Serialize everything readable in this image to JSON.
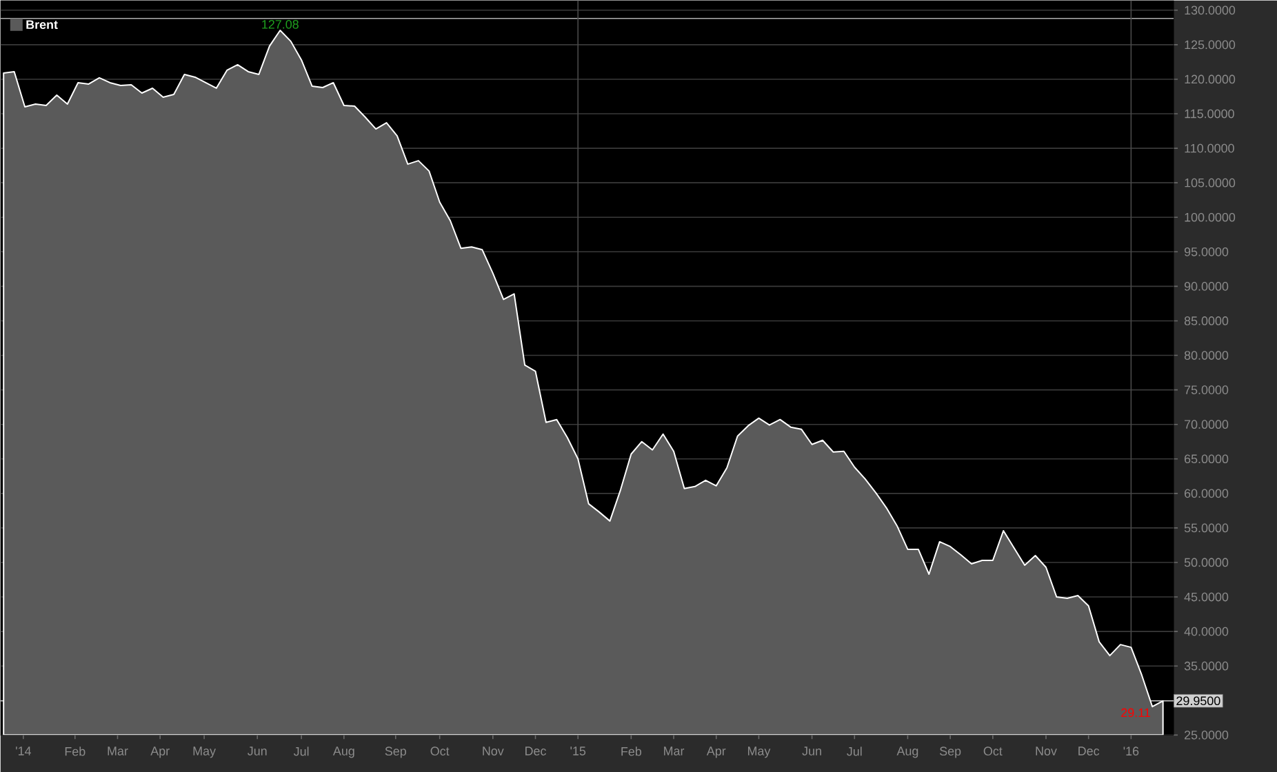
{
  "chart_data": {
    "type": "area",
    "x": [
      "2013-12-20",
      "2013-12-27",
      "2014-01-03",
      "2014-01-10",
      "2014-01-17",
      "2014-01-24",
      "2014-01-31",
      "2014-02-07",
      "2014-02-14",
      "2014-02-21",
      "2014-02-28",
      "2014-03-07",
      "2014-03-14",
      "2014-03-21",
      "2014-03-28",
      "2014-04-04",
      "2014-04-11",
      "2014-04-18",
      "2014-04-25",
      "2014-05-02",
      "2014-05-09",
      "2014-05-16",
      "2014-05-23",
      "2014-05-30",
      "2014-06-06",
      "2014-06-13",
      "2014-06-20",
      "2014-06-27",
      "2014-07-04",
      "2014-07-11",
      "2014-07-18",
      "2014-07-25",
      "2014-08-01",
      "2014-08-08",
      "2014-08-15",
      "2014-08-22",
      "2014-08-29",
      "2014-09-05",
      "2014-09-12",
      "2014-09-19",
      "2014-09-26",
      "2014-10-03",
      "2014-10-10",
      "2014-10-17",
      "2014-10-24",
      "2014-10-31",
      "2014-11-07",
      "2014-11-14",
      "2014-11-21",
      "2014-11-28",
      "2014-12-05",
      "2014-12-12",
      "2014-12-19",
      "2014-12-26",
      "2015-01-02",
      "2015-01-09",
      "2015-01-16",
      "2015-01-23",
      "2015-01-30",
      "2015-02-06",
      "2015-02-13",
      "2015-02-20",
      "2015-02-27",
      "2015-03-06",
      "2015-03-13",
      "2015-03-20",
      "2015-03-27",
      "2015-04-03",
      "2015-04-10",
      "2015-04-17",
      "2015-04-24",
      "2015-05-01",
      "2015-05-08",
      "2015-05-15",
      "2015-05-22",
      "2015-05-29",
      "2015-06-05",
      "2015-06-12",
      "2015-06-19",
      "2015-06-26",
      "2015-07-03",
      "2015-07-10",
      "2015-07-17",
      "2015-07-24",
      "2015-07-31",
      "2015-08-07",
      "2015-08-14",
      "2015-08-21",
      "2015-08-28",
      "2015-09-04",
      "2015-09-11",
      "2015-09-18",
      "2015-09-25",
      "2015-10-02",
      "2015-10-09",
      "2015-10-16",
      "2015-10-23",
      "2015-10-30",
      "2015-11-06",
      "2015-11-13",
      "2015-11-20",
      "2015-11-27",
      "2015-12-04",
      "2015-12-11",
      "2015-12-18",
      "2015-12-25",
      "2016-01-01",
      "2016-01-08",
      "2016-01-15",
      "2016-01-22"
    ],
    "series": [
      {
        "name": "Brent",
        "color": "#5a5a5a",
        "values": [
          120.9,
          121.1,
          116.0,
          116.4,
          116.2,
          117.7,
          116.4,
          119.5,
          119.3,
          120.2,
          119.5,
          119.1,
          119.2,
          118.0,
          118.7,
          117.4,
          117.8,
          120.7,
          120.3,
          119.5,
          118.7,
          121.3,
          122.1,
          121.1,
          120.7,
          124.8,
          127.08,
          125.5,
          122.8,
          119.0,
          118.8,
          119.5,
          116.2,
          116.1,
          114.5,
          112.8,
          113.7,
          111.8,
          107.7,
          108.2,
          106.7,
          102.2,
          99.5,
          95.5,
          95.7,
          95.3,
          91.9,
          88.1,
          88.9,
          78.6,
          77.7,
          70.3,
          70.7,
          68.1,
          65.0,
          58.5,
          57.3,
          56.0,
          60.5,
          65.7,
          67.5,
          66.3,
          68.6,
          66.1,
          60.7,
          61.0,
          61.9,
          61.1,
          63.7,
          68.3,
          69.8,
          70.9,
          69.9,
          70.7,
          69.6,
          69.3,
          67.1,
          67.7,
          66.0,
          66.1,
          63.8,
          62.1,
          60.1,
          57.9,
          55.3,
          51.9,
          51.9,
          48.3,
          53.0,
          52.3,
          51.1,
          49.8,
          50.3,
          50.3,
          54.6,
          52.1,
          49.6,
          51.0,
          49.3,
          45.0,
          44.8,
          45.2,
          43.7,
          38.5,
          36.5,
          38.1,
          37.7,
          33.7,
          29.11,
          29.95
        ]
      }
    ],
    "xlim": [
      "2013-12-18",
      "2016-01-29"
    ],
    "ylim": [
      25,
      131.4
    ],
    "xticks": [
      {
        "value": "2014-01-02",
        "label": "'14"
      },
      {
        "value": "2014-02-05",
        "label": "Feb"
      },
      {
        "value": "2014-03-05",
        "label": "Mar"
      },
      {
        "value": "2014-04-02",
        "label": "Apr"
      },
      {
        "value": "2014-05-01",
        "label": "May"
      },
      {
        "value": "2014-06-05",
        "label": "Jun"
      },
      {
        "value": "2014-07-04",
        "label": "Jul"
      },
      {
        "value": "2014-08-01",
        "label": "Aug"
      },
      {
        "value": "2014-09-04",
        "label": "Sep"
      },
      {
        "value": "2014-10-03",
        "label": "Oct"
      },
      {
        "value": "2014-11-07",
        "label": "Nov"
      },
      {
        "value": "2014-12-05",
        "label": "Dec"
      },
      {
        "value": "2015-01-02",
        "label": "'15"
      },
      {
        "value": "2015-02-06",
        "label": "Feb"
      },
      {
        "value": "2015-03-06",
        "label": "Mar"
      },
      {
        "value": "2015-04-03",
        "label": "Apr"
      },
      {
        "value": "2015-05-01",
        "label": "May"
      },
      {
        "value": "2015-06-05",
        "label": "Jun"
      },
      {
        "value": "2015-07-03",
        "label": "Jul"
      },
      {
        "value": "2015-08-07",
        "label": "Aug"
      },
      {
        "value": "2015-09-04",
        "label": "Sep"
      },
      {
        "value": "2015-10-02",
        "label": "Oct"
      },
      {
        "value": "2015-11-06",
        "label": "Nov"
      },
      {
        "value": "2015-12-04",
        "label": "Dec"
      },
      {
        "value": "2016-01-01",
        "label": "'16"
      }
    ],
    "yticks": [
      {
        "value": 25,
        "label": "25.0000"
      },
      {
        "value": 35,
        "label": "35.0000"
      },
      {
        "value": 40,
        "label": "40.0000"
      },
      {
        "value": 45,
        "label": "45.0000"
      },
      {
        "value": 50,
        "label": "50.0000"
      },
      {
        "value": 55,
        "label": "55.0000"
      },
      {
        "value": 60,
        "label": "60.0000"
      },
      {
        "value": 65,
        "label": "65.0000"
      },
      {
        "value": 70,
        "label": "70.0000"
      },
      {
        "value": 75,
        "label": "75.0000"
      },
      {
        "value": 80,
        "label": "80.0000"
      },
      {
        "value": 85,
        "label": "85.0000"
      },
      {
        "value": 90,
        "label": "90.0000"
      },
      {
        "value": 95,
        "label": "95.0000"
      },
      {
        "value": 100,
        "label": "100.0000"
      },
      {
        "value": 105,
        "label": "105.0000"
      },
      {
        "value": 110,
        "label": "110.0000"
      },
      {
        "value": 115,
        "label": "115.0000"
      },
      {
        "value": 120,
        "label": "120.0000"
      },
      {
        "value": 125,
        "label": "125.0000"
      },
      {
        "value": 130,
        "label": "130.0000"
      }
    ],
    "grid": "y",
    "legend": "top left",
    "ref_lines": [
      {
        "axis": "y",
        "value": 29.95,
        "label": "29.9500",
        "color": "#d0d0d0"
      },
      {
        "axis": "y",
        "value": 128.8,
        "color": "#b0b0b0"
      },
      {
        "axis": "x",
        "value": "2015-01-02",
        "color": "#4a4a4a"
      },
      {
        "axis": "x",
        "value": "2016-01-01",
        "color": "#4a4a4a"
      }
    ],
    "annotations": [
      {
        "text": "127.08",
        "x": "2014-06-20",
        "y": 127.08
      },
      {
        "text": "29.11",
        "x": "2016-01-15",
        "y": 29.11
      }
    ]
  }
}
